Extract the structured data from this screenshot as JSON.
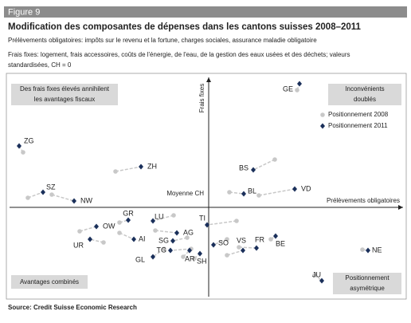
{
  "chart_data": {
    "type": "scatter",
    "figure_label": "Figure 9",
    "title": "Modification des composantes de dépenses dans les cantons suisses 2008–2011",
    "subtitle": [
      "Prélèvements obligatoires: impôts sur le revenu et la fortune, charges sociales, assurance maladie obligatoire",
      "Frais fixes: logement, frais accessoires, coûts de l'énergie, de l'eau, de la gestion des eaux usées et des déchets; valeurs",
      "standardisées, CH = 0"
    ],
    "x_label": "Prélèvements obligatoires",
    "y_label": "Frais fixes",
    "origin_label": "Moyenne CH",
    "quadrants": {
      "top_left": [
        "Des frais fixes élevés annihilent",
        "les avantages fiscaux"
      ],
      "top_right": [
        "Inconvénients",
        "doublés"
      ],
      "bottom_left": [
        "Avantages combinés"
      ],
      "bottom_right": [
        "Positionnement",
        "asymétrique"
      ]
    },
    "source": "Source: Credit Suisse Economic Research",
    "xlim": [
      -25,
      24.6
    ],
    "ylim": [
      -11.2,
      16.5
    ],
    "legend": "top-right",
    "categories": [
      "GE",
      "ZG",
      "ZH",
      "BS",
      "SZ",
      "NW",
      "BL",
      "VD",
      "GR",
      "OW",
      "LU",
      "TI",
      "AG",
      "UR",
      "AI",
      "SG",
      "TG",
      "SO",
      "VS",
      "FR",
      "BE",
      "AR",
      "SH",
      "GL",
      "NE",
      "JU"
    ],
    "series": [
      {
        "name": "Positionnement 2008",
        "color": "#c8c8c8",
        "marker": "circle",
        "x": [
          11.1,
          -23.3,
          -11.7,
          8.3,
          -22.7,
          -19.7,
          2.6,
          6.3,
          -11.2,
          -16.2,
          -4.4,
          3.5,
          -6.7,
          -13.2,
          -11.2,
          -2.7,
          -2.2,
          2.3,
          2.3,
          3.8,
          7.8,
          -3.2,
          -1.8,
          -5.6,
          19.3,
          13.3
        ],
        "values": [
          14.7,
          6.9,
          4.5,
          6.0,
          1.2,
          1.6,
          1.9,
          1.5,
          -1.9,
          -3.0,
          -1.0,
          -1.7,
          -2.9,
          -4.4,
          -3.2,
          -3.8,
          -5.2,
          -4.0,
          -6.0,
          -5.0,
          -4.0,
          -6.2,
          -6.4,
          -5.2,
          -5.3,
          -8.5
        ]
      },
      {
        "name": "Positionnement 2011",
        "color": "#1a2f5a",
        "marker": "diamond",
        "x": [
          11.4,
          -23.8,
          -8.5,
          5.6,
          -20.8,
          -16.9,
          4.4,
          10.8,
          -10.1,
          -14.1,
          -7.0,
          -0.2,
          -4.0,
          -14.9,
          -9.4,
          -4.5,
          -4.8,
          0.6,
          4.3,
          6.0,
          8.4,
          -2.4,
          -1.1,
          -7.0,
          20.0,
          14.2
        ],
        "values": [
          15.5,
          7.7,
          5.1,
          4.7,
          1.9,
          0.8,
          1.7,
          2.3,
          -1.6,
          -2.4,
          -1.7,
          -2.2,
          -3.2,
          -4.0,
          -4.0,
          -4.2,
          -5.4,
          -4.7,
          -5.4,
          -5.1,
          -3.6,
          -5.4,
          -5.8,
          -6.2,
          -5.4,
          -9.2
        ]
      }
    ]
  }
}
